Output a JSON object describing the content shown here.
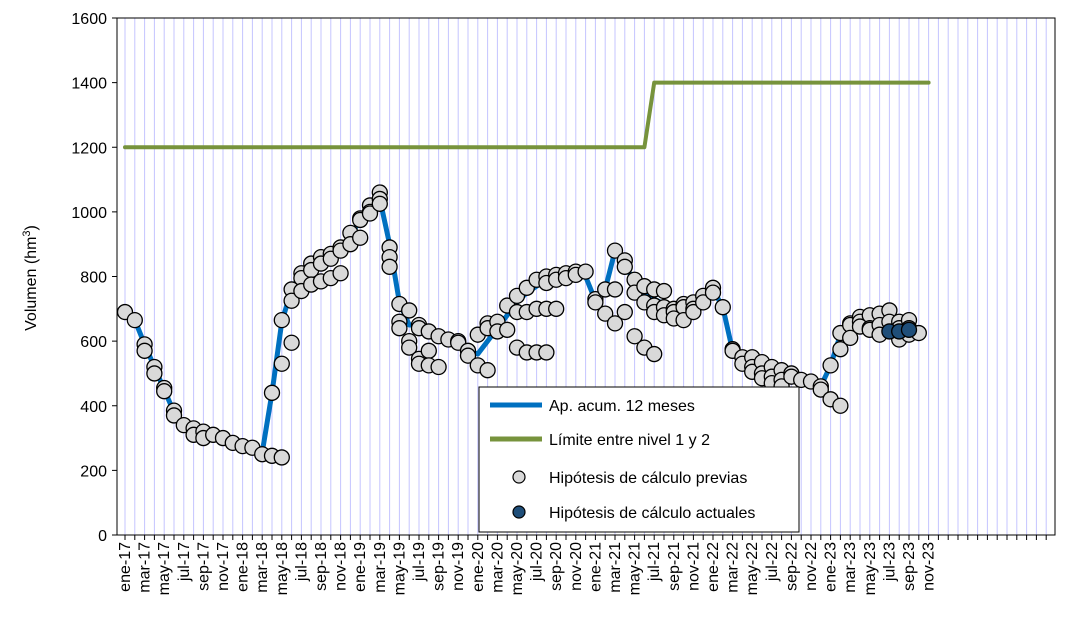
{
  "chart_data": {
    "type": "line",
    "ylabel": "Volumen (hm³)",
    "ylabel_parts": [
      "Volumen (hm",
      "3",
      ")"
    ],
    "ylim": [
      0,
      1600
    ],
    "yticks": [
      0,
      200,
      400,
      600,
      800,
      1000,
      1200,
      1400,
      1600
    ],
    "x_tick_labels": [
      "ene-17",
      "mar-17",
      "may-17",
      "jul-17",
      "sep-17",
      "nov-17",
      "ene-18",
      "mar-18",
      "may-18",
      "jul-18",
      "sep-18",
      "nov-18",
      "ene-19",
      "mar-19",
      "may-19",
      "jul-19",
      "sep-19",
      "nov-19",
      "ene-20",
      "mar-20",
      "may-20",
      "jul-20",
      "sep-20",
      "nov-20",
      "ene-21",
      "mar-21",
      "may-21",
      "jul-21",
      "sep-21",
      "nov-21",
      "ene-22",
      "mar-22",
      "may-22",
      "jul-22",
      "sep-22",
      "nov-22",
      "ene-23",
      "mar-23",
      "may-23",
      "jul-23",
      "sep-23",
      "nov-23"
    ],
    "grid": "vertical-monthly",
    "legend_position": "bottom-center",
    "colors": {
      "acum": "#0070c0",
      "limite": "#77933c",
      "previas_fill": "#d9d9d9",
      "actuales_fill": "#1f4e79",
      "grid": "#c4c4ff"
    },
    "series": [
      {
        "name": "Ap. acum. 12 meses",
        "x": [
          "ene-17",
          "feb-17",
          "mar-17",
          "abr-17",
          "may-17",
          "jun-17",
          "jul-17",
          "ago-17",
          "sep-17",
          "oct-17",
          "nov-17",
          "dic-17",
          "ene-18",
          "feb-18",
          "mar-18",
          "abr-18",
          "may-18",
          "jun-18",
          "jul-18",
          "ago-18",
          "sep-18",
          "oct-18",
          "nov-18",
          "dic-18",
          "ene-19",
          "feb-19",
          "mar-19",
          "abr-19",
          "may-19",
          "jun-19",
          "jul-19",
          "ago-19",
          "sep-19",
          "oct-19",
          "nov-19",
          "dic-19",
          "ene-20",
          "feb-20",
          "mar-20",
          "abr-20",
          "may-20",
          "jun-20",
          "jul-20",
          "ago-20",
          "sep-20",
          "oct-20",
          "nov-20",
          "dic-20",
          "ene-21",
          "feb-21",
          "mar-21",
          "abr-21",
          "may-21",
          "jun-21",
          "jul-21",
          "ago-21",
          "sep-21",
          "oct-21",
          "nov-21",
          "dic-21",
          "ene-22",
          "feb-22",
          "mar-22",
          "abr-22",
          "may-22",
          "jun-22",
          "jul-22",
          "ago-22",
          "sep-22",
          "oct-22",
          "nov-22",
          "dic-22",
          "ene-23",
          "feb-23",
          "mar-23",
          "abr-23",
          "may-23",
          "jun-23",
          "jul-23",
          "ago-23",
          "sep-23"
        ],
        "values": [
          690,
          665,
          590,
          520,
          450,
          380,
          340,
          330,
          320,
          310,
          300,
          285,
          275,
          265,
          255,
          440,
          660,
          760,
          810,
          840,
          860,
          870,
          890,
          920,
          980,
          1020,
          1040,
          900,
          720,
          650,
          650,
          630,
          610,
          600,
          600,
          570,
          560,
          600,
          640,
          680,
          720,
          750,
          770,
          790,
          800,
          810,
          815,
          800,
          725,
          760,
          880,
          830,
          790,
          750,
          730,
          715,
          705,
          700,
          705,
          720,
          760,
          705,
          570,
          550,
          530,
          515,
          510,
          500,
          490,
          475,
          470,
          460,
          525,
          620,
          650,
          660,
          660,
          665,
          630,
          630,
          635
        ]
      },
      {
        "name": "Límite entre nivel 1 y 2",
        "x": [
          "ene-17",
          "jun-21",
          "jul-21",
          "nov-23"
        ],
        "values": [
          1200,
          1200,
          1400,
          1400
        ]
      },
      {
        "name": "Hipótesis de cálculo previas",
        "points": [
          [
            "ene-17",
            690
          ],
          [
            "feb-17",
            665
          ],
          [
            "mar-17",
            590
          ],
          [
            "mar-17",
            570
          ],
          [
            "abr-17",
            520
          ],
          [
            "abr-17",
            500
          ],
          [
            "may-17",
            455
          ],
          [
            "may-17",
            445
          ],
          [
            "jun-17",
            385
          ],
          [
            "jun-17",
            370
          ],
          [
            "jul-17",
            340
          ],
          [
            "ago-17",
            330
          ],
          [
            "ago-17",
            310
          ],
          [
            "sep-17",
            320
          ],
          [
            "sep-17",
            300
          ],
          [
            "oct-17",
            310
          ],
          [
            "nov-17",
            300
          ],
          [
            "dic-17",
            285
          ],
          [
            "ene-18",
            275
          ],
          [
            "feb-18",
            270
          ],
          [
            "mar-18",
            250
          ],
          [
            "abr-18",
            245
          ],
          [
            "abr-18",
            440
          ],
          [
            "may-18",
            240
          ],
          [
            "may-18",
            530
          ],
          [
            "may-18",
            665
          ],
          [
            "jun-18",
            760
          ],
          [
            "jun-18",
            725
          ],
          [
            "jun-18",
            595
          ],
          [
            "jul-18",
            810
          ],
          [
            "jul-18",
            795
          ],
          [
            "jul-18",
            755
          ],
          [
            "ago-18",
            840
          ],
          [
            "ago-18",
            820
          ],
          [
            "ago-18",
            775
          ],
          [
            "sep-18",
            860
          ],
          [
            "sep-18",
            840
          ],
          [
            "sep-18",
            785
          ],
          [
            "oct-18",
            870
          ],
          [
            "oct-18",
            855
          ],
          [
            "oct-18",
            795
          ],
          [
            "nov-18",
            890
          ],
          [
            "nov-18",
            880
          ],
          [
            "nov-18",
            810
          ],
          [
            "dic-18",
            935
          ],
          [
            "dic-18",
            900
          ],
          [
            "ene-19",
            980
          ],
          [
            "ene-19",
            975
          ],
          [
            "ene-19",
            920
          ],
          [
            "feb-19",
            1020
          ],
          [
            "feb-19",
            1000
          ],
          [
            "feb-19",
            995
          ],
          [
            "mar-19",
            1060
          ],
          [
            "mar-19",
            1040
          ],
          [
            "mar-19",
            1025
          ],
          [
            "abr-19",
            890
          ],
          [
            "abr-19",
            860
          ],
          [
            "abr-19",
            830
          ],
          [
            "may-19",
            715
          ],
          [
            "may-19",
            660
          ],
          [
            "may-19",
            640
          ],
          [
            "jun-19",
            695
          ],
          [
            "jun-19",
            600
          ],
          [
            "jun-19",
            580
          ],
          [
            "jul-19",
            650
          ],
          [
            "jul-19",
            640
          ],
          [
            "jul-19",
            545
          ],
          [
            "jul-19",
            530
          ],
          [
            "ago-19",
            630
          ],
          [
            "ago-19",
            570
          ],
          [
            "ago-19",
            525
          ],
          [
            "sep-19",
            615
          ],
          [
            "sep-19",
            520
          ],
          [
            "oct-19",
            605
          ],
          [
            "nov-19",
            600
          ],
          [
            "nov-19",
            595
          ],
          [
            "dic-19",
            570
          ],
          [
            "dic-19",
            555
          ],
          [
            "ene-20",
            620
          ],
          [
            "ene-20",
            525
          ],
          [
            "feb-20",
            655
          ],
          [
            "feb-20",
            640
          ],
          [
            "feb-20",
            510
          ],
          [
            "mar-20",
            660
          ],
          [
            "mar-20",
            630
          ],
          [
            "abr-20",
            710
          ],
          [
            "abr-20",
            635
          ],
          [
            "may-20",
            740
          ],
          [
            "may-20",
            690
          ],
          [
            "may-20",
            580
          ],
          [
            "jun-20",
            765
          ],
          [
            "jun-20",
            690
          ],
          [
            "jun-20",
            565
          ],
          [
            "jul-20",
            790
          ],
          [
            "jul-20",
            700
          ],
          [
            "jul-20",
            565
          ],
          [
            "ago-20",
            800
          ],
          [
            "ago-20",
            780
          ],
          [
            "ago-20",
            700
          ],
          [
            "ago-20",
            565
          ],
          [
            "sep-20",
            805
          ],
          [
            "sep-20",
            790
          ],
          [
            "sep-20",
            700
          ],
          [
            "oct-20",
            810
          ],
          [
            "oct-20",
            795
          ],
          [
            "nov-20",
            815
          ],
          [
            "nov-20",
            805
          ],
          [
            "dic-20",
            815
          ],
          [
            "ene-21",
            730
          ],
          [
            "ene-21",
            720
          ],
          [
            "feb-21",
            760
          ],
          [
            "feb-21",
            685
          ],
          [
            "mar-21",
            880
          ],
          [
            "mar-21",
            760
          ],
          [
            "mar-21",
            655
          ],
          [
            "abr-21",
            850
          ],
          [
            "abr-21",
            830
          ],
          [
            "abr-21",
            690
          ],
          [
            "may-21",
            790
          ],
          [
            "may-21",
            750
          ],
          [
            "may-21",
            615
          ],
          [
            "jun-21",
            770
          ],
          [
            "jun-21",
            720
          ],
          [
            "jun-21",
            580
          ],
          [
            "jul-21",
            760
          ],
          [
            "jul-21",
            710
          ],
          [
            "jul-21",
            690
          ],
          [
            "jul-21",
            560
          ],
          [
            "ago-21",
            755
          ],
          [
            "ago-21",
            705
          ],
          [
            "ago-21",
            680
          ],
          [
            "sep-21",
            700
          ],
          [
            "sep-21",
            690
          ],
          [
            "sep-21",
            670
          ],
          [
            "oct-21",
            715
          ],
          [
            "oct-21",
            705
          ],
          [
            "oct-21",
            665
          ],
          [
            "nov-21",
            720
          ],
          [
            "nov-21",
            700
          ],
          [
            "nov-21",
            690
          ],
          [
            "dic-21",
            740
          ],
          [
            "dic-21",
            720
          ],
          [
            "ene-22",
            765
          ],
          [
            "ene-22",
            750
          ],
          [
            "feb-22",
            705
          ],
          [
            "mar-22",
            575
          ],
          [
            "mar-22",
            570
          ],
          [
            "abr-22",
            550
          ],
          [
            "abr-22",
            530
          ],
          [
            "may-22",
            550
          ],
          [
            "may-22",
            520
          ],
          [
            "may-22",
            505
          ],
          [
            "jun-22",
            535
          ],
          [
            "jun-22",
            500
          ],
          [
            "jun-22",
            485
          ],
          [
            "jul-22",
            520
          ],
          [
            "jul-22",
            490
          ],
          [
            "jul-22",
            470
          ],
          [
            "ago-22",
            510
          ],
          [
            "ago-22",
            480
          ],
          [
            "ago-22",
            460
          ],
          [
            "sep-22",
            500
          ],
          [
            "sep-22",
            490
          ],
          [
            "oct-22",
            480
          ],
          [
            "nov-22",
            475
          ],
          [
            "dic-22",
            460
          ],
          [
            "dic-22",
            450
          ],
          [
            "ene-23",
            525
          ],
          [
            "ene-23",
            420
          ],
          [
            "feb-23",
            625
          ],
          [
            "feb-23",
            575
          ],
          [
            "feb-23",
            400
          ],
          [
            "mar-23",
            655
          ],
          [
            "mar-23",
            650
          ],
          [
            "mar-23",
            610
          ],
          [
            "abr-23",
            675
          ],
          [
            "abr-23",
            660
          ],
          [
            "abr-23",
            645
          ],
          [
            "may-23",
            680
          ],
          [
            "may-23",
            640
          ],
          [
            "may-23",
            635
          ],
          [
            "jun-23",
            685
          ],
          [
            "jun-23",
            650
          ],
          [
            "jun-23",
            620
          ],
          [
            "jul-23",
            695
          ],
          [
            "jul-23",
            660
          ],
          [
            "ago-23",
            660
          ],
          [
            "ago-23",
            640
          ],
          [
            "ago-23",
            605
          ],
          [
            "sep-23",
            665
          ],
          [
            "sep-23",
            640
          ],
          [
            "sep-23",
            620
          ],
          [
            "oct-23",
            625
          ]
        ]
      },
      {
        "name": "Hipótesis de cálculo actuales",
        "points": [
          [
            "jul-23",
            630
          ],
          [
            "ago-23",
            630
          ],
          [
            "sep-23",
            635
          ]
        ]
      }
    ]
  }
}
